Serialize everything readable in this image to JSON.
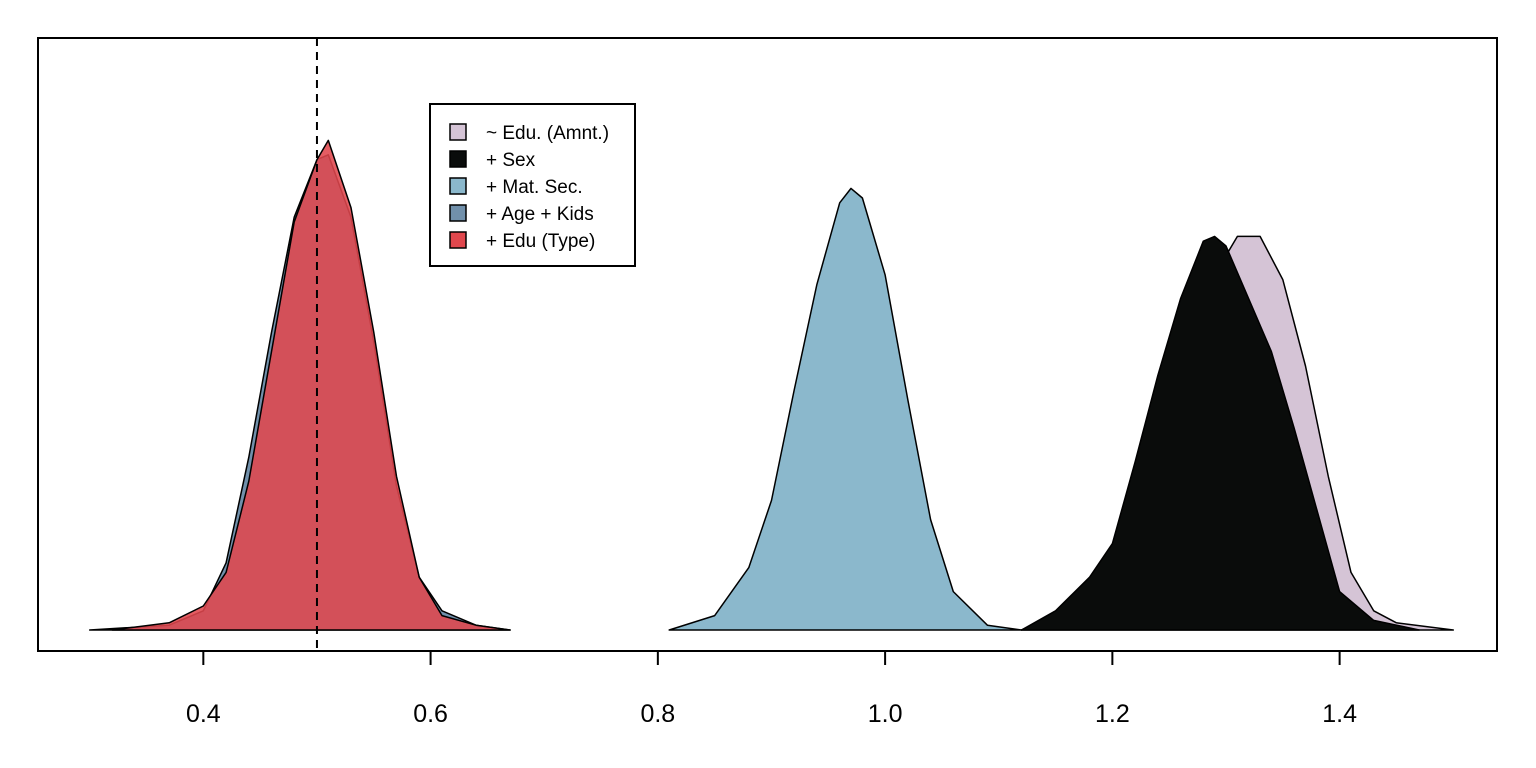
{
  "chart_data": {
    "type": "area",
    "title": "",
    "xlabel": "",
    "ylabel": "",
    "xlim": [
      0.2545,
      1.5385
    ],
    "ylim": [
      0,
      1.05
    ],
    "x_ticks": [
      0.4,
      0.6,
      0.8,
      1.0,
      1.2,
      1.4
    ],
    "x_tick_labels": [
      "0.4",
      "0.6",
      "0.8",
      "1.0",
      "1.2",
      "1.4"
    ],
    "y_axis_shown": false,
    "grid": false,
    "reference_line": {
      "x": 0.5,
      "style": "dashed"
    },
    "legend": {
      "placement": "top-left"
    },
    "series": [
      {
        "name": "~ Edu. (Amnt.)",
        "color": "#d5c4d6",
        "x": [
          1.12,
          1.16,
          1.2,
          1.23,
          1.25,
          1.27,
          1.29,
          1.31,
          1.33,
          1.35,
          1.37,
          1.39,
          1.41,
          1.43,
          1.45,
          1.5
        ],
        "y": [
          0.0,
          0.04,
          0.12,
          0.26,
          0.45,
          0.62,
          0.74,
          0.82,
          0.82,
          0.73,
          0.55,
          0.32,
          0.12,
          0.04,
          0.015,
          0.0
        ]
      },
      {
        "name": "+ Sex",
        "color": "#0a0c0b",
        "x": [
          1.12,
          1.15,
          1.18,
          1.2,
          1.22,
          1.24,
          1.26,
          1.28,
          1.29,
          1.3,
          1.32,
          1.34,
          1.36,
          1.38,
          1.4,
          1.43,
          1.47
        ],
        "y": [
          0.0,
          0.04,
          0.11,
          0.18,
          0.35,
          0.53,
          0.69,
          0.81,
          0.82,
          0.8,
          0.69,
          0.58,
          0.42,
          0.25,
          0.08,
          0.02,
          0.0
        ]
      },
      {
        "name": "+ Mat. Sec.",
        "color": "#8bb8cc",
        "x": [
          0.81,
          0.85,
          0.88,
          0.9,
          0.92,
          0.94,
          0.96,
          0.97,
          0.98,
          1.0,
          1.02,
          1.04,
          1.06,
          1.09,
          1.12
        ],
        "y": [
          0.0,
          0.03,
          0.13,
          0.27,
          0.5,
          0.72,
          0.89,
          0.92,
          0.9,
          0.74,
          0.48,
          0.23,
          0.08,
          0.01,
          0.0
        ]
      },
      {
        "name": "+ Age + Kids",
        "color": "#7190ab",
        "x": [
          0.3,
          0.37,
          0.4,
          0.42,
          0.44,
          0.46,
          0.48,
          0.5,
          0.51,
          0.53,
          0.55,
          0.57,
          0.59,
          0.61,
          0.64,
          0.67
        ],
        "y": [
          0.0,
          0.01,
          0.04,
          0.14,
          0.36,
          0.62,
          0.86,
          0.98,
          0.99,
          0.86,
          0.6,
          0.3,
          0.11,
          0.04,
          0.01,
          0.0
        ]
      },
      {
        "name": "+ Edu (Type)",
        "color": "#e0474d",
        "x": [
          0.32,
          0.37,
          0.4,
          0.42,
          0.44,
          0.46,
          0.48,
          0.5,
          0.51,
          0.53,
          0.55,
          0.57,
          0.59,
          0.61,
          0.64,
          0.67
        ],
        "y": [
          0.0,
          0.015,
          0.05,
          0.12,
          0.31,
          0.58,
          0.85,
          0.98,
          1.02,
          0.88,
          0.62,
          0.32,
          0.11,
          0.03,
          0.01,
          0.0
        ]
      }
    ]
  }
}
